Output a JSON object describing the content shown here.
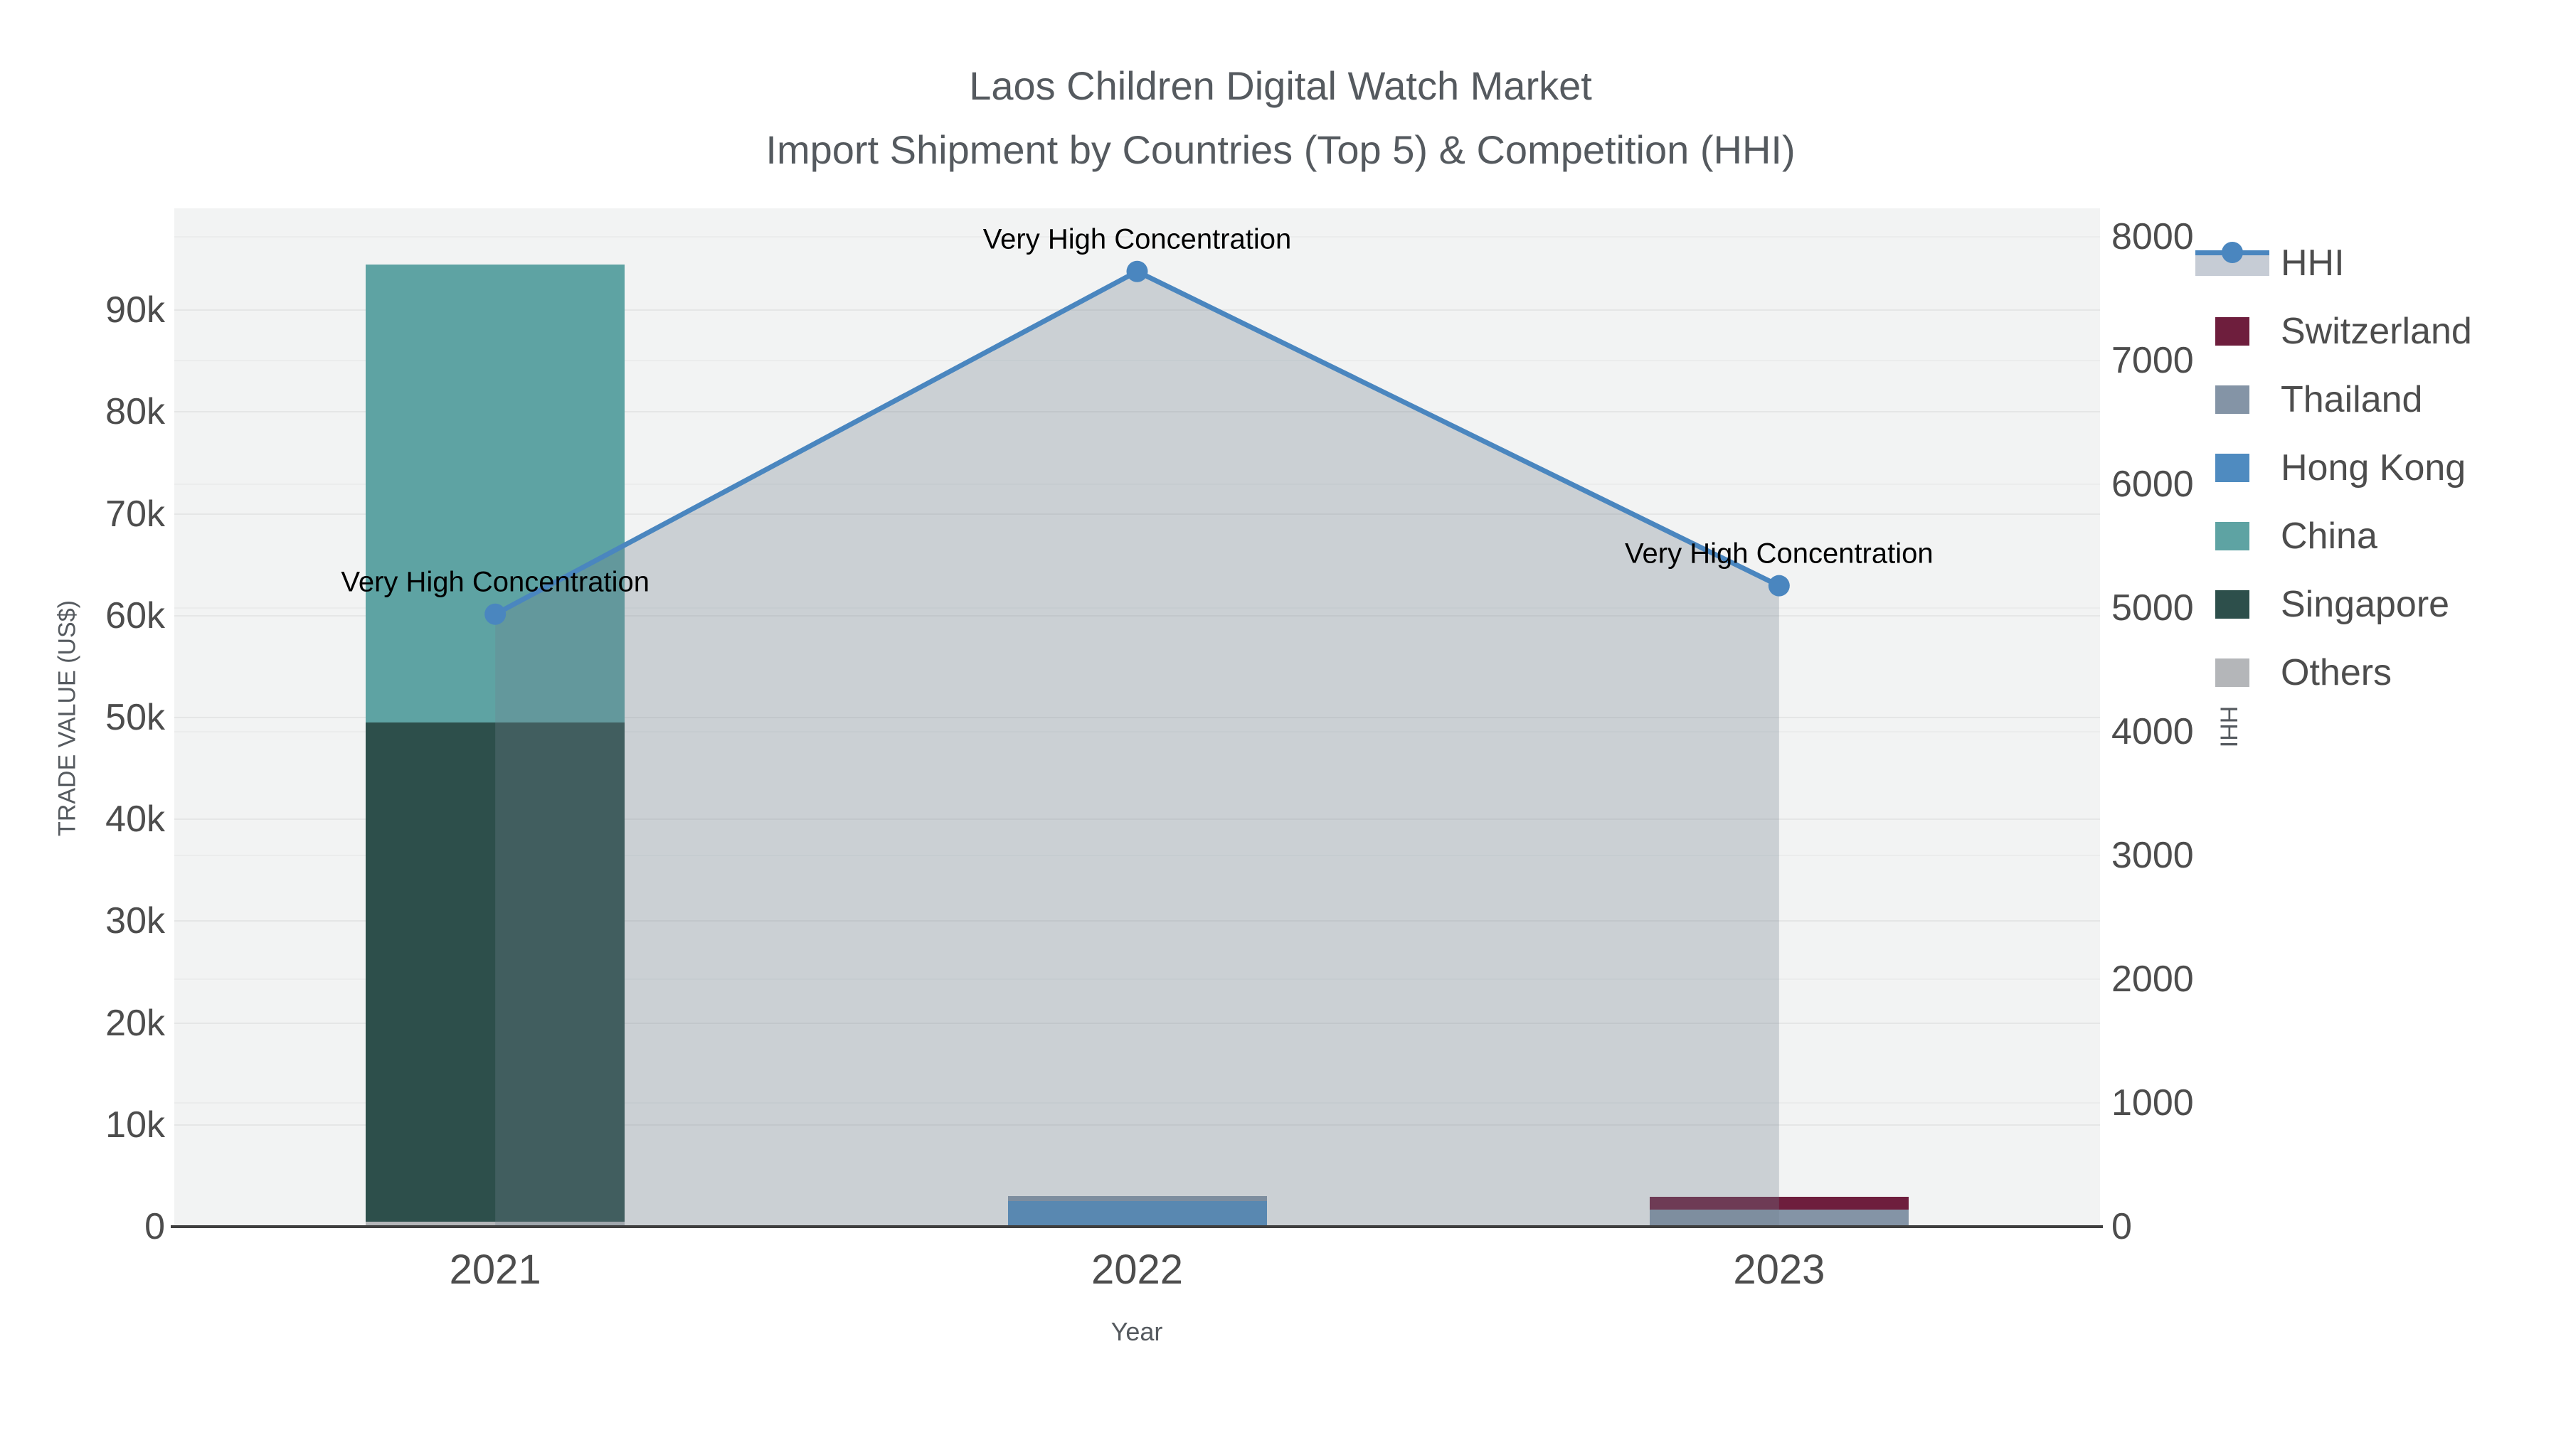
{
  "title": {
    "line1": "Laos Children Digital Watch Market",
    "line2": "Import Shipment by Countries (Top 5) & Competition (HHI)"
  },
  "chart_data": {
    "type": "bar",
    "subtype": "stacked-bars-with-line",
    "categories": [
      "2021",
      "2022",
      "2023"
    ],
    "x_label": "Year",
    "y_left": {
      "label": "TRADE VALUE (US$)",
      "range": [
        0,
        100000
      ],
      "ticks": [
        {
          "v": 0,
          "t": "0"
        },
        {
          "v": 10000,
          "t": "10k"
        },
        {
          "v": 20000,
          "t": "20k"
        },
        {
          "v": 30000,
          "t": "30k"
        },
        {
          "v": 40000,
          "t": "40k"
        },
        {
          "v": 50000,
          "t": "50k"
        },
        {
          "v": 60000,
          "t": "60k"
        },
        {
          "v": 70000,
          "t": "70k"
        },
        {
          "v": 80000,
          "t": "80k"
        },
        {
          "v": 90000,
          "t": "90k"
        }
      ]
    },
    "y_right": {
      "label": "HHI",
      "range": [
        0,
        8000
      ],
      "ticks": [
        {
          "v": 0,
          "t": "0"
        },
        {
          "v": 1000,
          "t": "1000"
        },
        {
          "v": 2000,
          "t": "2000"
        },
        {
          "v": 3000,
          "t": "3000"
        },
        {
          "v": 4000,
          "t": "4000"
        },
        {
          "v": 5000,
          "t": "5000"
        },
        {
          "v": 6000,
          "t": "6000"
        },
        {
          "v": 7000,
          "t": "7000"
        },
        {
          "v": 8000,
          "t": "8000"
        }
      ]
    },
    "series": [
      {
        "name": "Switzerland",
        "color": "#6e1e3d",
        "values": [
          0,
          0,
          1200
        ]
      },
      {
        "name": "Thailand",
        "color": "#8494a6",
        "values": [
          0,
          500,
          1700
        ]
      },
      {
        "name": "Hong Kong",
        "color": "#4f8bc0",
        "values": [
          0,
          2500,
          0
        ]
      },
      {
        "name": "China",
        "color": "#5ea3a3",
        "values": [
          45000,
          0,
          0
        ]
      },
      {
        "name": "Singapore",
        "color": "#2d4f4b",
        "values": [
          49000,
          0,
          0
        ]
      },
      {
        "name": "Others",
        "color": "#b4b6b9",
        "values": [
          500,
          0,
          0
        ]
      }
    ],
    "stack_order_bottom_to_top": [
      "Others",
      "Singapore",
      "China",
      "Hong Kong",
      "Thailand",
      "Switzerland"
    ],
    "line_series": {
      "name": "HHI",
      "axis": "right",
      "color": "#4a86bf",
      "area_fill": "rgba(112,128,144,0.30)",
      "values": [
        4950,
        7720,
        5180
      ]
    },
    "annotations": [
      {
        "category": "2021",
        "text": "Very High Concentration"
      },
      {
        "category": "2022",
        "text": "Very High Concentration"
      },
      {
        "category": "2023",
        "text": "Very High Concentration"
      }
    ],
    "grid": "on",
    "legend_position": "top-right"
  },
  "legend": {
    "items": [
      {
        "name": "HHI",
        "type": "line"
      },
      {
        "name": "Switzerland",
        "type": "swatch",
        "color": "#6e1e3d"
      },
      {
        "name": "Thailand",
        "type": "swatch",
        "color": "#8494a6"
      },
      {
        "name": "Hong Kong",
        "type": "swatch",
        "color": "#4f8bc0"
      },
      {
        "name": "China",
        "type": "swatch",
        "color": "#5ea3a3"
      },
      {
        "name": "Singapore",
        "type": "swatch",
        "color": "#2d4f4b"
      },
      {
        "name": "Others",
        "type": "swatch",
        "color": "#b4b6b9"
      }
    ]
  }
}
